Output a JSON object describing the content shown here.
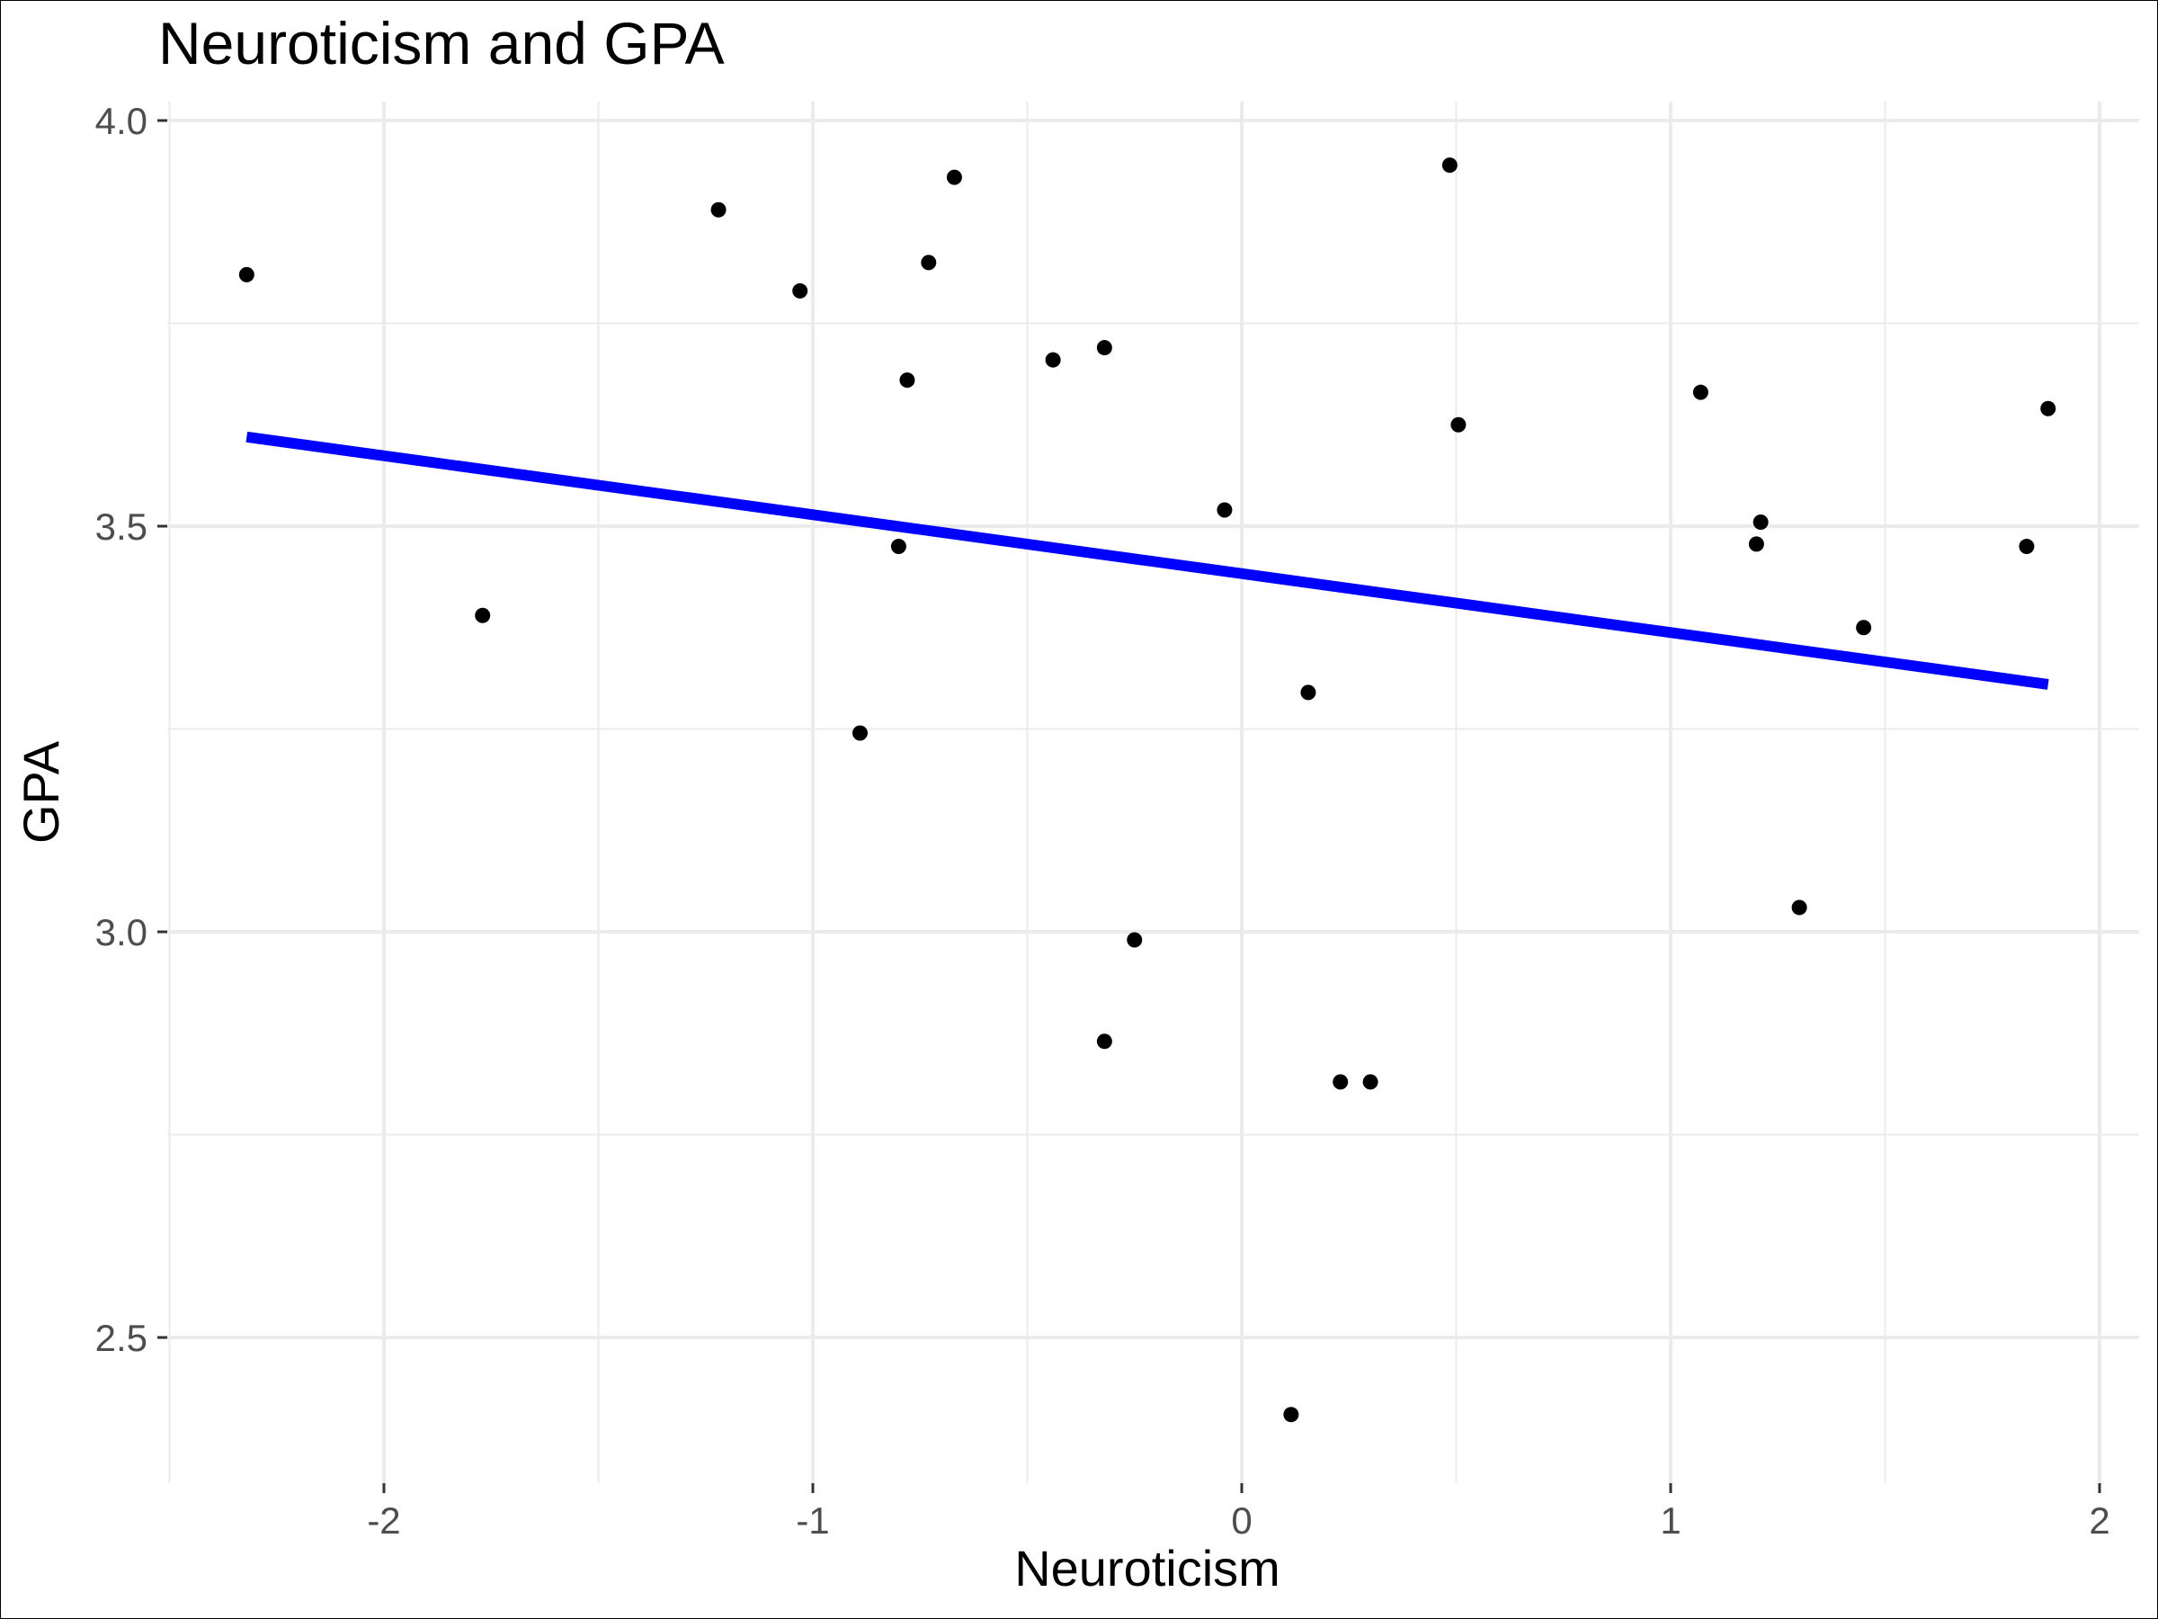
{
  "chart_data": {
    "type": "scatter",
    "title": "Neuroticism and GPA",
    "xlabel": "Neuroticism",
    "ylabel": "GPA",
    "xlim": [
      -2.5,
      2.1
    ],
    "ylim": [
      2.33,
      4.03
    ],
    "x_ticks": [
      -2,
      -1,
      0,
      1,
      2
    ],
    "x_tick_labels": [
      "-2",
      "-1",
      "0",
      "1",
      "2"
    ],
    "y_ticks": [
      2.5,
      3.0,
      3.5,
      4.0
    ],
    "y_tick_labels": [
      "2.5",
      "3.0",
      "3.5",
      "4.0"
    ],
    "grid": true,
    "points": [
      {
        "x": -2.32,
        "y": 3.81
      },
      {
        "x": -1.77,
        "y": 3.39
      },
      {
        "x": -1.22,
        "y": 3.89
      },
      {
        "x": -1.03,
        "y": 3.79
      },
      {
        "x": -0.89,
        "y": 3.245
      },
      {
        "x": -0.8,
        "y": 3.475
      },
      {
        "x": -0.78,
        "y": 3.68
      },
      {
        "x": -0.73,
        "y": 3.825
      },
      {
        "x": -0.67,
        "y": 3.93
      },
      {
        "x": -0.44,
        "y": 3.705
      },
      {
        "x": -0.32,
        "y": 3.72
      },
      {
        "x": -0.32,
        "y": 2.865
      },
      {
        "x": -0.25,
        "y": 2.99
      },
      {
        "x": -0.04,
        "y": 3.52
      },
      {
        "x": 0.115,
        "y": 2.405
      },
      {
        "x": 0.155,
        "y": 3.295
      },
      {
        "x": 0.23,
        "y": 2.815
      },
      {
        "x": 0.3,
        "y": 2.815
      },
      {
        "x": 0.485,
        "y": 3.945
      },
      {
        "x": 0.505,
        "y": 3.625
      },
      {
        "x": 1.07,
        "y": 3.665
      },
      {
        "x": 1.2,
        "y": 3.478
      },
      {
        "x": 1.21,
        "y": 3.505
      },
      {
        "x": 1.3,
        "y": 3.03
      },
      {
        "x": 1.45,
        "y": 3.375
      },
      {
        "x": 1.83,
        "y": 3.475
      },
      {
        "x": 1.88,
        "y": 3.645
      }
    ],
    "trend_line": {
      "x": [
        -2.32,
        1.88
      ],
      "y": [
        3.61,
        3.305
      ],
      "color": "#0000ff"
    },
    "point_color": "#000000",
    "grid_color": "#ebebeb"
  }
}
